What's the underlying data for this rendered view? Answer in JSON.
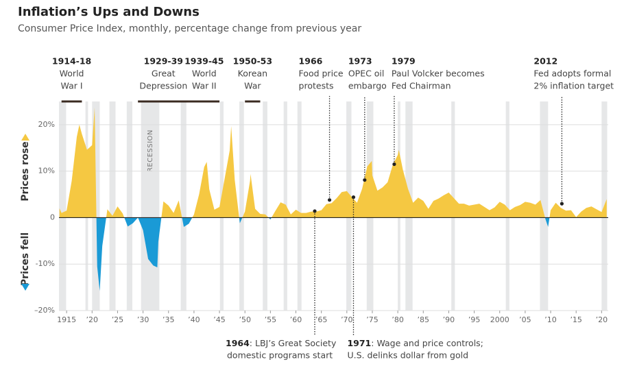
{
  "chart_data": {
    "type": "area",
    "title": "Inflation’s Ups and Downs",
    "subtitle": "Consumer Price Index, monthly, percentage change from previous year",
    "y_label_up": "Prices rose",
    "y_label_down": "Prices fell",
    "recession_label": "RECESSION",
    "positive_color": "#f5c842",
    "negative_color": "#1a9ad6",
    "recession_color": "#e6e7e8",
    "grid": true,
    "xlim": [
      1913.5,
      2021.3
    ],
    "ylim": [
      -20,
      25
    ],
    "yticks": [
      {
        "value": -20,
        "label": "–20%"
      },
      {
        "value": -10,
        "label": "-10%"
      },
      0,
      {
        "value": 10,
        "label": "10%"
      },
      {
        "value": 20,
        "label": "20%"
      }
    ],
    "xticks": [
      1915,
      {
        "value": 1920,
        "label": "’20"
      },
      {
        "value": 1925,
        "label": "’25"
      },
      {
        "value": 1930,
        "label": "’30"
      },
      {
        "value": 1935,
        "label": "’35"
      },
      {
        "value": 1940,
        "label": "’40"
      },
      {
        "value": 1945,
        "label": "’45"
      },
      {
        "value": 1950,
        "label": "’50"
      },
      {
        "value": 1955,
        "label": "’55"
      },
      {
        "value": 1960,
        "label": "’60"
      },
      {
        "value": 1965,
        "label": "’65"
      },
      {
        "value": 1970,
        "label": "’70"
      },
      {
        "value": 1975,
        "label": "’75"
      },
      {
        "value": 1980,
        "label": "’80"
      },
      {
        "value": 1985,
        "label": "’85"
      },
      {
        "value": 1990,
        "label": "’90"
      },
      {
        "value": 1995,
        "label": "’95"
      },
      {
        "value": 2000,
        "label": "2000"
      },
      {
        "value": 2005,
        "label": "’05"
      },
      {
        "value": 2010,
        "label": "’10"
      },
      {
        "value": 2015,
        "label": "’15"
      },
      {
        "value": 2020,
        "label": "’20"
      }
    ],
    "x": [
      1913.6,
      1914,
      1915,
      1916,
      1917,
      1917.5,
      1918,
      1919,
      1920,
      1920.5,
      1921,
      1921.5,
      1922,
      1923,
      1924,
      1925,
      1926,
      1927,
      1928,
      1929,
      1930,
      1931,
      1932,
      1932.8,
      1933,
      1934,
      1935,
      1936,
      1937,
      1938,
      1939,
      1940,
      1941,
      1942,
      1942.5,
      1943,
      1944,
      1945,
      1946,
      1947,
      1947.3,
      1948,
      1949,
      1950,
      1951,
      1951.1,
      1952,
      1953,
      1954,
      1955,
      1956,
      1957,
      1958,
      1959,
      1960,
      1961,
      1962,
      1963,
      1964,
      1965,
      1966,
      1967,
      1968,
      1969,
      1970,
      1971,
      1972,
      1973,
      1974,
      1974.9,
      1975,
      1976,
      1977,
      1978,
      1979,
      1980,
      1980.2,
      1981,
      1982,
      1983,
      1984,
      1985,
      1986,
      1987,
      1988,
      1989,
      1990,
      1991,
      1992,
      1993,
      1994,
      1995,
      1996,
      1997,
      1998,
      1999,
      2000,
      2001,
      2002,
      2003,
      2004,
      2005,
      2006,
      2007,
      2008,
      2009,
      2009.5,
      2010,
      2011,
      2012,
      2013,
      2014,
      2015,
      2016,
      2017,
      2018,
      2019,
      2020,
      2021
    ],
    "values": [
      2.0,
      1.0,
      1.5,
      7.9,
      17.4,
      20.0,
      18.0,
      14.6,
      15.6,
      23.7,
      -10.5,
      -15.8,
      -6.1,
      1.8,
      0.4,
      2.4,
      0.9,
      -1.9,
      -1.2,
      0.0,
      -2.7,
      -8.9,
      -10.3,
      -10.7,
      -5.2,
      3.5,
      2.6,
      1.0,
      3.7,
      -2.0,
      -1.3,
      0.7,
      5.0,
      10.9,
      12.0,
      6.1,
      1.7,
      2.3,
      8.3,
      14.4,
      19.7,
      8.1,
      -1.2,
      1.3,
      7.9,
      9.4,
      1.9,
      0.8,
      0.7,
      -0.4,
      1.5,
      3.3,
      2.8,
      0.7,
      1.7,
      1.0,
      1.0,
      1.3,
      1.3,
      1.6,
      2.9,
      3.1,
      4.2,
      5.5,
      5.7,
      4.4,
      3.2,
      6.2,
      11.0,
      12.2,
      9.1,
      5.8,
      6.5,
      7.6,
      11.3,
      13.5,
      14.6,
      10.3,
      6.2,
      3.2,
      4.3,
      3.6,
      1.9,
      3.6,
      4.1,
      4.8,
      5.4,
      4.2,
      3.0,
      3.0,
      2.6,
      2.8,
      3.0,
      2.3,
      1.6,
      2.2,
      3.4,
      2.8,
      1.6,
      2.3,
      2.7,
      3.4,
      3.2,
      2.8,
      3.8,
      -0.4,
      -2.0,
      1.6,
      3.2,
      2.1,
      1.5,
      1.6,
      0.1,
      1.3,
      2.1,
      2.4,
      1.8,
      1.2,
      4.0
    ],
    "recessions": [
      [
        1913.5,
        1914.9
      ],
      [
        1918.7,
        1919.2
      ],
      [
        1920.0,
        1921.5
      ],
      [
        1923.4,
        1924.6
      ],
      [
        1926.8,
        1927.9
      ],
      [
        1929.6,
        1933.2
      ],
      [
        1937.4,
        1938.5
      ],
      [
        1945.1,
        1945.8
      ],
      [
        1948.9,
        1949.8
      ],
      [
        1953.5,
        1954.4
      ],
      [
        1957.6,
        1958.3
      ],
      [
        1960.3,
        1961.1
      ],
      [
        1969.9,
        1970.9
      ],
      [
        1973.9,
        1975.2
      ],
      [
        1980.0,
        1980.5
      ],
      [
        1981.5,
        1982.9
      ],
      [
        1990.5,
        1991.2
      ],
      [
        2001.2,
        2001.9
      ],
      [
        2007.9,
        2009.5
      ],
      [
        2020.0,
        2021.1
      ]
    ],
    "eras": [
      {
        "years": "1914-18",
        "lines": [
          "World",
          "War I"
        ],
        "start": 1914,
        "end": 1918
      },
      {
        "years": "1929-39",
        "lines": [
          "Great",
          "Depression"
        ],
        "start": 1929,
        "end": 1939
      },
      {
        "years": "1939-45",
        "lines": [
          "World",
          "War II"
        ],
        "start": 1939,
        "end": 1945
      },
      {
        "years": "1950-53",
        "lines": [
          "Korean",
          "War"
        ],
        "start": 1950,
        "end": 1953
      }
    ],
    "events": [
      {
        "label": "1966",
        "lines": [
          "Food price",
          "protests"
        ],
        "x": 1966.6,
        "y": 3.8,
        "side": "top"
      },
      {
        "label": "1973",
        "lines": [
          "OPEC oil",
          "embargo"
        ],
        "x": 1973.5,
        "y": 8.1,
        "side": "top"
      },
      {
        "label": "1979",
        "lines": [
          "Paul Volcker becomes",
          "Fed Chairman"
        ],
        "x": 1979.3,
        "y": 11.5,
        "side": "top"
      },
      {
        "label": "2012",
        "lines": [
          "Fed adopts formal",
          "2% inflation target"
        ],
        "x": 2012.2,
        "y": 3.0,
        "side": "top"
      },
      {
        "label": "1964",
        "lines": [
          ": LBJ’s Great Society",
          "domestic programs start"
        ],
        "x": 1963.7,
        "y": 1.4,
        "side": "bottom"
      },
      {
        "label": "1971",
        "lines": [
          ": Wage and price controls;",
          "U.S. delinks dollar from gold"
        ],
        "x": 1971.3,
        "y": 4.4,
        "side": "bottom"
      }
    ]
  }
}
